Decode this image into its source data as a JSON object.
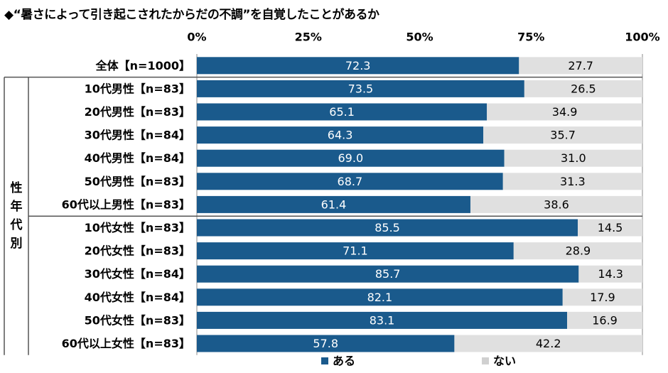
{
  "title": "◆“暑さによって引き起こされたからだの不調”を自覚したことがあるか",
  "group_label": "性年代別",
  "colors": {
    "aru": "#1a5a8c",
    "nai": "#e0e0e0",
    "aru_text": "#ffffff",
    "nai_text": "#000000"
  },
  "chart_data": {
    "type": "bar",
    "orientation": "horizontal-stacked-100",
    "title": "◆“暑さによって引き起こされたからだの不調”を自覚したことがあるか",
    "xlim": [
      0,
      100
    ],
    "ticks": [
      "0%",
      "25%",
      "50%",
      "75%",
      "100%"
    ],
    "tick_values": [
      0,
      25,
      50,
      75,
      100
    ],
    "categories": [
      "全体【n=1000】",
      "10代男性【n=83】",
      "20代男性【n=83】",
      "30代男性【n=84】",
      "40代男性【n=84】",
      "50代男性【n=83】",
      "60代以上男性【n=83】",
      "10代女性【n=83】",
      "20代女性【n=83】",
      "30代女性【n=84】",
      "40代女性【n=84】",
      "50代女性【n=83】",
      "60代以上女性【n=83】"
    ],
    "series": [
      {
        "name": "ある",
        "values": [
          72.3,
          73.5,
          65.1,
          64.3,
          69.0,
          68.7,
          61.4,
          85.5,
          71.1,
          85.7,
          82.1,
          83.1,
          57.8
        ],
        "labels": [
          "72.3",
          "73.5",
          "65.1",
          "64.3",
          "69.0",
          "68.7",
          "61.4",
          "85.5",
          "71.1",
          "85.7",
          "82.1",
          "83.1",
          "57.8"
        ]
      },
      {
        "name": "ない",
        "values": [
          27.7,
          26.5,
          34.9,
          35.7,
          31.0,
          31.3,
          38.6,
          14.5,
          28.9,
          14.3,
          17.9,
          16.9,
          42.2
        ],
        "labels": [
          "27.7",
          "26.5",
          "34.9",
          "35.7",
          "31.0",
          "31.3",
          "38.6",
          "14.5",
          "28.9",
          "14.3",
          "17.9",
          "16.9",
          "42.2"
        ]
      }
    ],
    "legend_position": "bottom",
    "grid": false
  }
}
